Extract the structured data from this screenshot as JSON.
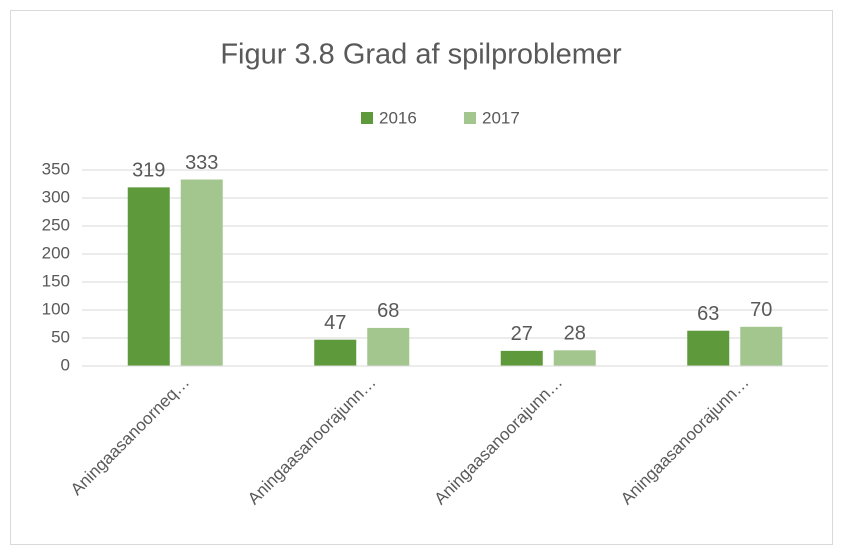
{
  "chart_data": {
    "type": "bar",
    "title": "Figur 3.8 Grad af spilproblemer",
    "categories": [
      "Aningaasanoorneq…",
      "Aningaasanoorajunn…",
      "Aningaasanoorajunn…",
      "Aningaasanoorajunn…"
    ],
    "series": [
      {
        "name": "2016",
        "color": "#5e9a3c",
        "values": [
          319,
          47,
          27,
          63
        ]
      },
      {
        "name": "2017",
        "color": "#a3c68f",
        "values": [
          333,
          68,
          28,
          70
        ]
      }
    ],
    "ylim": [
      0,
      350
    ],
    "yticks": [
      0,
      50,
      100,
      150,
      200,
      250,
      300,
      350
    ],
    "grid": true,
    "legend": "top"
  }
}
